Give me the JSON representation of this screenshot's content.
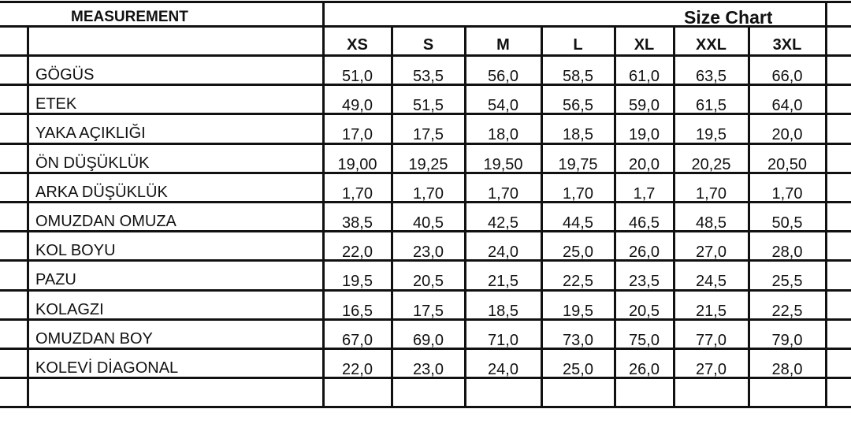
{
  "header": {
    "measurement": "MEASUREMENT",
    "size_chart": "Size Chart"
  },
  "sizes": [
    "XS",
    "S",
    "M",
    "L",
    "XL",
    "XXL",
    "3XL"
  ],
  "rows": [
    {
      "label": "GÖGÜS",
      "values": [
        "51,0",
        "53,5",
        "56,0",
        "58,5",
        "61,0",
        "63,5",
        "66,0"
      ]
    },
    {
      "label": "ETEK",
      "values": [
        "49,0",
        "51,5",
        "54,0",
        "56,5",
        "59,0",
        "61,5",
        "64,0"
      ]
    },
    {
      "label": "YAKA AÇIKLIĞI",
      "values": [
        "17,0",
        "17,5",
        "18,0",
        "18,5",
        "19,0",
        "19,5",
        "20,0"
      ]
    },
    {
      "label": "ÖN DÜŞÜKLÜK",
      "values": [
        "19,00",
        "19,25",
        "19,50",
        "19,75",
        "20,0",
        "20,25",
        "20,50"
      ]
    },
    {
      "label": "ARKA DÜŞÜKLÜK",
      "values": [
        "1,70",
        "1,70",
        "1,70",
        "1,70",
        "1,7",
        "1,70",
        "1,70"
      ]
    },
    {
      "label": "OMUZDAN OMUZA",
      "values": [
        "38,5",
        "40,5",
        "42,5",
        "44,5",
        "46,5",
        "48,5",
        "50,5"
      ]
    },
    {
      "label": "KOL BOYU",
      "values": [
        "22,0",
        "23,0",
        "24,0",
        "25,0",
        "26,0",
        "27,0",
        "28,0"
      ]
    },
    {
      "label": "PAZU",
      "values": [
        "19,5",
        "20,5",
        "21,5",
        "22,5",
        "23,5",
        "24,5",
        "25,5"
      ]
    },
    {
      "label": "KOLAGZI",
      "values": [
        "16,5",
        "17,5",
        "18,5",
        "19,5",
        "20,5",
        "21,5",
        "22,5"
      ]
    },
    {
      "label": "OMUZDAN BOY",
      "values": [
        "67,0",
        "69,0",
        "71,0",
        "73,0",
        "75,0",
        "77,0",
        "79,0"
      ]
    },
    {
      "label": "KOLEVİ DİAGONAL",
      "values": [
        "22,0",
        "23,0",
        "24,0",
        "25,0",
        "26,0",
        "27,0",
        "28,0"
      ]
    }
  ]
}
